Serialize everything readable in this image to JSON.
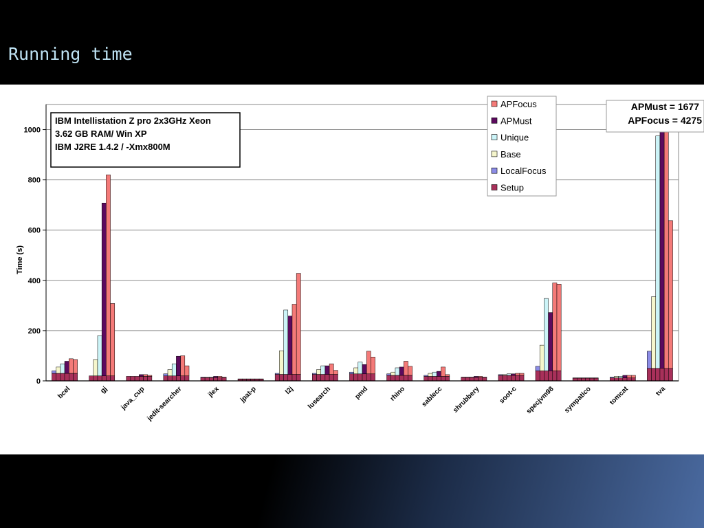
{
  "slide": {
    "title": "Running time"
  },
  "info_box": {
    "lines": [
      "IBM Intellistation Z pro 2x3GHz Xeon",
      "3.62 GB RAM/ Win XP",
      "IBM J2RE 1.4.2 / -Xmx800M"
    ]
  },
  "annotation": {
    "lines": [
      "APMust = 1677",
      "APFocus = 4275"
    ]
  },
  "chart_data": {
    "type": "bar",
    "stacked": true,
    "ylabel": "Time (s)",
    "xlabel": "",
    "ylim": [
      0,
      1100
    ],
    "yticks": [
      0,
      200,
      400,
      600,
      800,
      1000
    ],
    "grid": true,
    "legend_position": "top-right",
    "bars_per_group": 6,
    "categories": [
      "bcel",
      "gj",
      "java_cup",
      "jedit-searcher",
      "jlex",
      "jpat-p",
      "l2j",
      "lusearch",
      "pmd",
      "rhino",
      "sablecc",
      "shrubbery",
      "soot-c",
      "specjvm98",
      "sympatico",
      "tomcat",
      "tva"
    ],
    "series": [
      {
        "name": "APFocus",
        "color": "#f47a78"
      },
      {
        "name": "APMust",
        "color": "#5c0a5e"
      },
      {
        "name": "Unique",
        "color": "#ccf4f8"
      },
      {
        "name": "Base",
        "color": "#f6f6cc"
      },
      {
        "name": "LocalFocus",
        "color": "#8c8ce6"
      },
      {
        "name": "Setup",
        "color": "#a8305a"
      }
    ],
    "bar_totals": [
      [
        40,
        55,
        68,
        78,
        88,
        85
      ],
      [
        20,
        85,
        180,
        708,
        820,
        308
      ],
      [
        18,
        18,
        18,
        25,
        25,
        22
      ],
      [
        28,
        45,
        68,
        98,
        100,
        60
      ],
      [
        15,
        15,
        15,
        18,
        18,
        15
      ],
      [
        8,
        8,
        8,
        8,
        8,
        8
      ],
      [
        30,
        120,
        282,
        258,
        305,
        428
      ],
      [
        30,
        45,
        60,
        60,
        68,
        42
      ],
      [
        35,
        52,
        75,
        65,
        118,
        95
      ],
      [
        28,
        35,
        52,
        55,
        78,
        58
      ],
      [
        22,
        30,
        35,
        38,
        55,
        25
      ],
      [
        15,
        15,
        15,
        18,
        18,
        15
      ],
      [
        25,
        25,
        28,
        28,
        30,
        30
      ],
      [
        58,
        142,
        328,
        272,
        390,
        385
      ],
      [
        12,
        12,
        12,
        12,
        12,
        12
      ],
      [
        15,
        18,
        18,
        22,
        22,
        22
      ],
      [
        118,
        335,
        975,
        1677,
        4275,
        638
      ]
    ],
    "bar_series_index": [
      5,
      3,
      2,
      1,
      0,
      0
    ],
    "series_setup": [
      30,
      20,
      18,
      20,
      13,
      7,
      26,
      26,
      28,
      22,
      18,
      14,
      22,
      40,
      11,
      12,
      50
    ]
  }
}
